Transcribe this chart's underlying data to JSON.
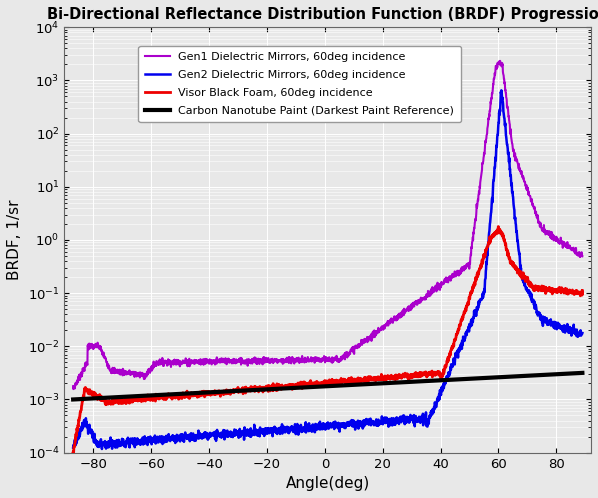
{
  "title": "Bi-Directional Reflectance Distribution Function (BRDF) Progression",
  "xlabel": "Angle(deg)",
  "ylabel": "BRDF, 1/sr",
  "xlim": [
    -90,
    92
  ],
  "ylim_log": [
    -4,
    4
  ],
  "background_color": "#e8e8e8",
  "grid_color": "#ffffff",
  "legend_entries": [
    "Carbon Nanotube Paint (Darkest Paint Reference)",
    "Gen1 Dielectric Mirrors, 60deg incidence",
    "Gen2 Dielectric Mirrors, 60deg incidence",
    "Visor Black Foam, 60deg incidence"
  ],
  "line_colors": {
    "black": "#000000",
    "purple": "#aa00cc",
    "blue": "#0000ee",
    "red": "#ee0000"
  },
  "line_widths": {
    "black": 3.0,
    "purple": 1.5,
    "blue": 1.8,
    "red": 2.0
  }
}
